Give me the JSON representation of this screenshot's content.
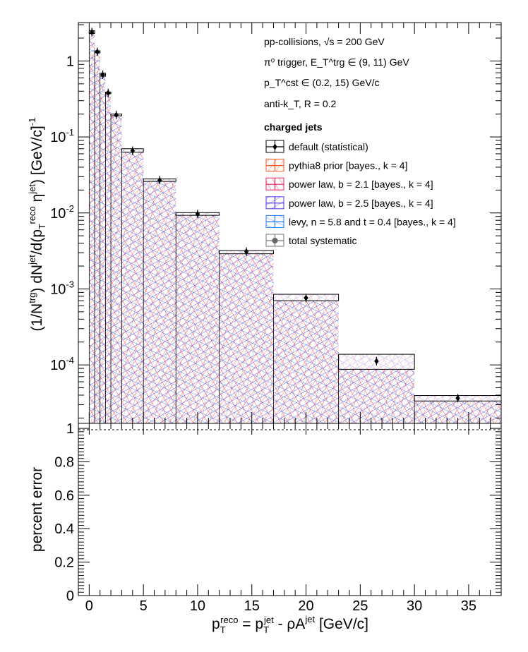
{
  "chart_data": [
    {
      "type": "bar",
      "panel": "top",
      "yscale": "log",
      "ylabel": "(1/N^trg) dN^jet/d(p_T^reco η^jet) [GeV/c]^-1",
      "xlim": [
        -1,
        38
      ],
      "ylim": [
        1.7e-05,
        3.2
      ],
      "ytick_labels": [
        "10^-4",
        "10^-3",
        "10^-2",
        "10^-1",
        "1"
      ],
      "bin_edges": [
        0,
        0.5,
        1,
        1.5,
        2,
        3,
        5,
        8,
        12,
        17,
        23,
        30,
        38
      ],
      "default_statistical": {
        "name": "default (statistical)",
        "x": [
          0.25,
          0.75,
          1.25,
          1.75,
          2.5,
          4,
          6.5,
          10,
          14.5,
          20,
          26.5,
          34
        ],
        "values": [
          2.4,
          1.32,
          0.66,
          0.38,
          0.195,
          0.066,
          0.027,
          0.0097,
          0.0031,
          0.00076,
          0.000112,
          3.65e-05
        ]
      },
      "systematic_upper": [
        2.5,
        1.36,
        0.69,
        0.39,
        0.2,
        0.07,
        0.028,
        0.0101,
        0.0032,
        0.00085,
        0.000138,
        3.95e-05
      ],
      "systematic_lower": [
        2.3,
        1.28,
        0.63,
        0.37,
        0.19,
        0.063,
        0.026,
        0.0093,
        0.0029,
        0.0007,
        8.75e-05,
        3.35e-05
      ],
      "legend": {
        "info_lines": [
          "pp-collisions, √s = 200 GeV",
          "π⁰ trigger, E_T^trg ∈ (9, 11) GeV",
          "p_T^cst ∈ (0.2, 15) GeV/c",
          "anti-k_T, R = 0.2"
        ],
        "header": "charged jets",
        "entries": [
          {
            "label": "default (statistical)",
            "color": "#000000"
          },
          {
            "label": "pythia8 prior [bayes., k = 4]",
            "color": "#ff5522"
          },
          {
            "label": "power law, b = 2.1 [bayes., k = 4]",
            "color": "#ee2255"
          },
          {
            "label": "power law, b = 2.5 [bayes., k = 4]",
            "color": "#5533ee"
          },
          {
            "label": "levy, n = 5.8 and t = 0.4 [bayes., k = 4]",
            "color": "#2277ff"
          },
          {
            "label": "total systematic",
            "color": "#777777"
          }
        ],
        "placement": "top-right"
      }
    },
    {
      "type": "line",
      "panel": "bottom",
      "ylabel": "percent error",
      "xlabel": "p_T^reco = p_T^jet - ρA^jet [GeV/c]",
      "xlim": [
        -1,
        38
      ],
      "ylim": [
        0,
        1.03
      ],
      "yticks": [
        "0",
        "0.2",
        "0.4",
        "0.6",
        "0.8",
        "1"
      ],
      "xticks": [
        "0",
        "5",
        "10",
        "15",
        "20",
        "25",
        "30",
        "35"
      ],
      "reference_line": 1
    }
  ]
}
